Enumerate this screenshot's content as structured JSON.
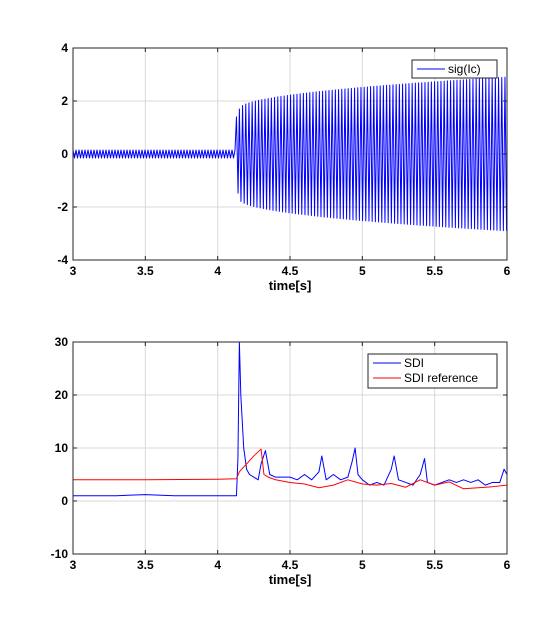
{
  "colors": {
    "blue": "#0000ff",
    "red": "#ff0000",
    "grid": "#d9d9d9",
    "axis": "#262626"
  },
  "chart_data": [
    {
      "type": "line",
      "xlabel": "time[s]",
      "ylabel": "",
      "xlim": [
        3,
        6
      ],
      "ylim": [
        -4,
        4
      ],
      "grid": true,
      "legend": "top-right",
      "x_ticks": [
        3,
        3.5,
        4,
        4.5,
        5,
        5.5,
        6
      ],
      "x_tick_labels": [
        "3",
        "3.5",
        "4",
        "4.5",
        "5",
        "5.5",
        "6"
      ],
      "y_ticks": [
        -4,
        -2,
        0,
        2,
        4
      ],
      "y_tick_labels": [
        "-4",
        "-2",
        "0",
        "2",
        "4"
      ],
      "series": [
        {
          "name": "sig(Ic)",
          "color": "#0000ff",
          "kind": "oscillation",
          "segments": [
            {
              "x0": 3.0,
              "x1": 4.13,
              "amp0": 0.15,
              "amp1": 0.15
            },
            {
              "x0": 4.13,
              "x1": 4.15,
              "amp0": 1.4,
              "amp1": 1.5
            },
            {
              "x0": 4.15,
              "x1": 6.0,
              "amp0": 1.7,
              "amp1": 2.9
            }
          ]
        }
      ]
    },
    {
      "type": "line",
      "xlabel": "time[s]",
      "ylabel": "",
      "xlim": [
        3,
        6
      ],
      "ylim": [
        -10,
        30
      ],
      "grid": true,
      "legend": "top-right",
      "x_ticks": [
        3,
        3.5,
        4,
        4.5,
        5,
        5.5,
        6
      ],
      "x_tick_labels": [
        "3",
        "3.5",
        "4",
        "4.5",
        "5",
        "5.5",
        "6"
      ],
      "y_ticks": [
        -10,
        0,
        10,
        20,
        30
      ],
      "y_tick_labels": [
        "-10",
        "0",
        "10",
        "20",
        "30"
      ],
      "series": [
        {
          "name": "SDI",
          "color": "#0000ff",
          "x": [
            3.0,
            3.3,
            3.5,
            3.7,
            3.9,
            4.13,
            4.14,
            4.15,
            4.16,
            4.17,
            4.18,
            4.2,
            4.22,
            4.25,
            4.28,
            4.3,
            4.33,
            4.36,
            4.4,
            4.45,
            4.5,
            4.55,
            4.6,
            4.65,
            4.7,
            4.72,
            4.75,
            4.8,
            4.85,
            4.9,
            4.93,
            4.95,
            4.97,
            5.0,
            5.05,
            5.1,
            5.15,
            5.2,
            5.22,
            5.25,
            5.3,
            5.35,
            5.4,
            5.43,
            5.45,
            5.5,
            5.55,
            5.6,
            5.65,
            5.7,
            5.75,
            5.8,
            5.85,
            5.9,
            5.95,
            5.98,
            6.0
          ],
          "y": [
            1,
            1,
            1.2,
            1,
            1,
            1,
            8,
            30,
            20,
            15,
            10,
            6,
            5,
            4.5,
            4,
            7,
            9.5,
            5,
            4.5,
            4.5,
            4.5,
            4,
            5,
            4,
            5.5,
            8.5,
            4,
            5,
            4,
            4.5,
            7.5,
            10,
            5,
            4,
            3,
            3.5,
            3,
            6,
            8.5,
            4,
            3.5,
            3,
            5,
            8,
            3.5,
            3,
            3.5,
            4,
            3.5,
            4,
            3.5,
            4,
            3,
            3.5,
            3.5,
            6,
            5
          ]
        },
        {
          "name": "SDI reference",
          "color": "#ff0000",
          "x": [
            3.0,
            3.5,
            4.0,
            4.13,
            4.15,
            4.2,
            4.25,
            4.3,
            4.32,
            4.35,
            4.4,
            4.5,
            4.6,
            4.7,
            4.8,
            4.9,
            5.0,
            5.1,
            5.2,
            5.3,
            5.4,
            5.5,
            5.6,
            5.7,
            5.8,
            5.9,
            6.0
          ],
          "y": [
            4,
            4,
            4.1,
            4.2,
            5.5,
            7,
            8.5,
            9.8,
            5,
            4.5,
            4,
            3.5,
            3.2,
            2.5,
            3,
            4,
            3.2,
            3,
            3.3,
            2.6,
            4,
            3,
            3.6,
            2.3,
            2.5,
            2.7,
            3
          ]
        }
      ]
    }
  ]
}
